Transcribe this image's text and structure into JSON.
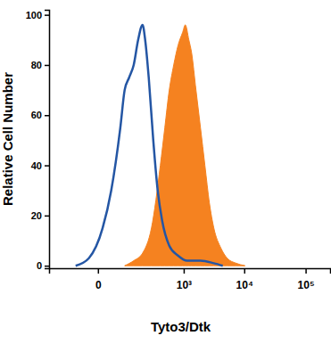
{
  "chart_data": {
    "type": "histogram",
    "x_label": "Tyto3/Dtk",
    "y_label": "Relative Cell Number",
    "log": "x",
    "xlim": [
      -220,
      250000
    ],
    "xticks": [
      0,
      {
        "value": 1000,
        "label": "10³"
      },
      {
        "value": 10000,
        "label": "10⁴"
      },
      {
        "value": 100000,
        "label": "10⁵"
      }
    ],
    "ylim": [
      -1,
      102
    ],
    "yticks": [
      0,
      20,
      40,
      60,
      80,
      100
    ],
    "series": [
      {
        "type": "area",
        "color": "#f58220",
        "x": [
          72,
          118,
          181,
          269,
          392,
          471,
          564,
          674,
          804,
          958,
          1063,
          1221,
          1354,
          1607,
          1909,
          2260,
          2683,
          3175,
          4158,
          5258,
          7358,
          10290
        ],
        "values": [
          0,
          2,
          5,
          15,
          40,
          55,
          70,
          80,
          88,
          93,
          96,
          90,
          85,
          70,
          55,
          40,
          25,
          15,
          7,
          3,
          1,
          0
        ]
      },
      {
        "type": "line",
        "color": "#2456a4",
        "x": [
          -55,
          -17,
          8,
          27,
          55,
          72,
          93,
          118,
          147,
          181,
          204,
          239,
          291,
          351,
          422,
          564,
          804,
          1139,
          1909,
          3175,
          4448
        ],
        "values": [
          0,
          3,
          15,
          30,
          55,
          70,
          75,
          80,
          90,
          96,
          90,
          75,
          50,
          30,
          18,
          8,
          4,
          2,
          2,
          1,
          0
        ]
      }
    ]
  }
}
